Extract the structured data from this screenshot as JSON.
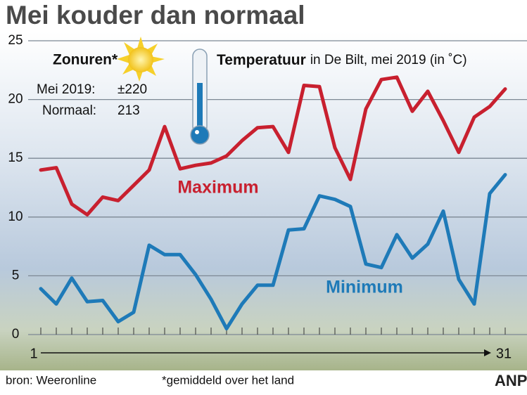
{
  "chart_data": {
    "type": "line",
    "title": "Mei kouder dan normaal",
    "subtitle": [
      "Temperatuur",
      "in De Bilt, mei 2019 (in ˚C)"
    ],
    "sunshine": {
      "title": "Zonuren*",
      "rows": [
        [
          "Mei 2019:",
          "±220"
        ],
        [
          "Normaal:",
          213
        ]
      ]
    },
    "x": [
      1,
      2,
      3,
      4,
      5,
      6,
      7,
      8,
      9,
      10,
      11,
      12,
      13,
      14,
      15,
      16,
      17,
      18,
      19,
      20,
      21,
      22,
      23,
      24,
      25,
      26,
      27,
      28,
      29,
      30,
      31
    ],
    "xlim": [
      1,
      31
    ],
    "xticks": [
      1,
      31
    ],
    "ylim": [
      0,
      25
    ],
    "yticks": [
      0,
      5,
      10,
      15,
      20,
      25
    ],
    "grid": true,
    "series": [
      {
        "name": "Maximum",
        "color": "#c8202f",
        "values": [
          14.0,
          14.2,
          11.1,
          10.2,
          11.7,
          11.4,
          12.7,
          14.0,
          17.7,
          14.1,
          14.4,
          14.6,
          15.2,
          16.5,
          17.6,
          17.7,
          15.5,
          21.2,
          21.1,
          15.9,
          13.2,
          19.2,
          21.7,
          21.9,
          19.0,
          20.7,
          18.2,
          15.5,
          18.5,
          19.4,
          20.9
        ]
      },
      {
        "name": "Minimum",
        "color": "#1e7ab8",
        "values": [
          3.9,
          2.6,
          4.8,
          2.8,
          2.9,
          1.1,
          1.9,
          7.6,
          6.8,
          6.8,
          5.1,
          3.0,
          0.5,
          2.6,
          4.2,
          4.2,
          8.9,
          9.0,
          11.8,
          11.5,
          10.9,
          6.0,
          5.7,
          8.5,
          6.5,
          7.7,
          10.5,
          4.7,
          2.6,
          12.0,
          13.6
        ]
      }
    ],
    "source": "bron: Weeronline",
    "note": "*gemiddeld over het land",
    "logo": "ANP"
  }
}
